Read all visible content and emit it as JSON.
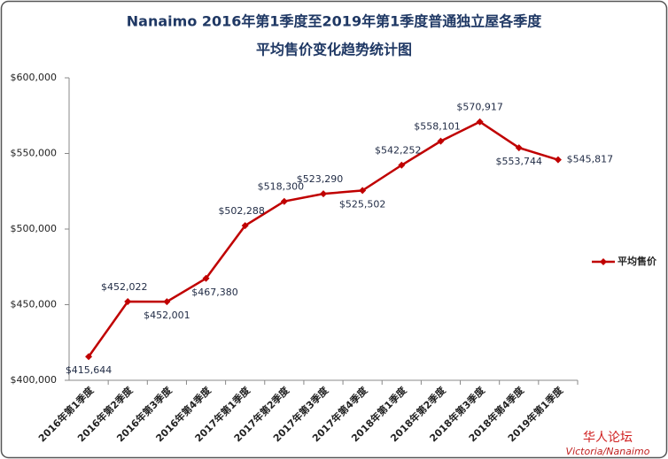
{
  "chart_data": {
    "type": "line",
    "title": "Nanaimo 2016年第1季度至2019年第1季度普通独立屋各季度",
    "subtitle": "平均售价变化趋势统计图",
    "categories": [
      "2016年第1季度",
      "2016年第2季度",
      "2016年第3季度",
      "2016年第4季度",
      "2017年第1季度",
      "2017年第2季度",
      "2017年第3季度",
      "2017年第4季度",
      "2018年第1季度",
      "2018年第2季度",
      "2018年第3季度",
      "2018年第4季度",
      "2019年第1季度"
    ],
    "series": [
      {
        "name": "平均售价",
        "color": "#c00000",
        "values": [
          415644,
          452022,
          452001,
          467380,
          502288,
          518300,
          523290,
          525502,
          542252,
          558101,
          570917,
          553744,
          545817
        ],
        "value_labels": [
          "$415,644",
          "$452,022",
          "$452,001",
          "$467,380",
          "$502,288",
          "$518,300",
          "$523,290",
          "$525,502",
          "$542,252",
          "$558,101",
          "$570,917",
          "$553,744",
          "$545,817"
        ]
      }
    ],
    "ylim": [
      400000,
      600000
    ],
    "yticks": [
      {
        "value": 400000,
        "label": "$400,000"
      },
      {
        "value": 450000,
        "label": "$450,000"
      },
      {
        "value": 500000,
        "label": "$500,000"
      },
      {
        "value": 550000,
        "label": "$550,000"
      },
      {
        "value": 600000,
        "label": "$600,000"
      }
    ],
    "grid": false,
    "legend": "right",
    "watermark": {
      "text": "华人论坛",
      "site": "Victoria/Nanaimo"
    }
  }
}
